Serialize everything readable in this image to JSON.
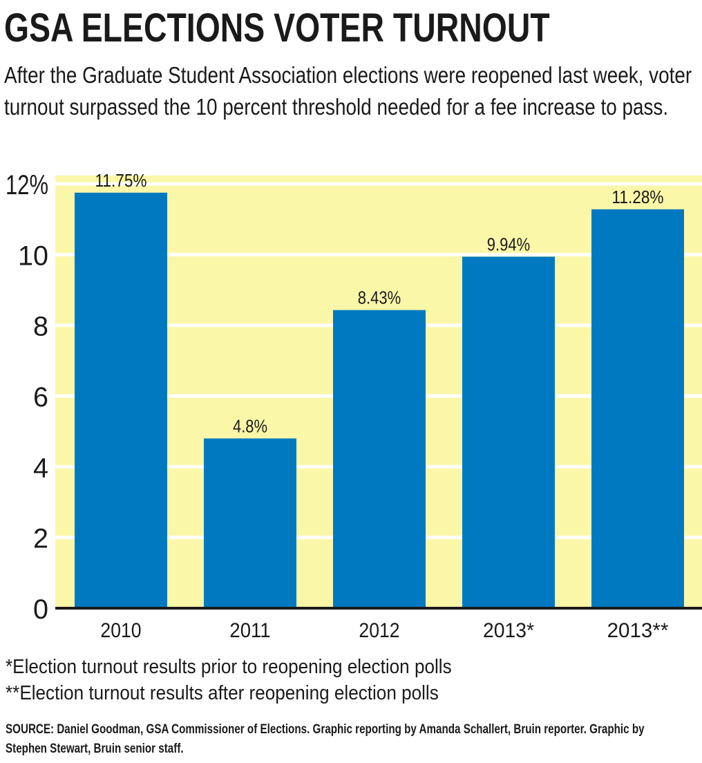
{
  "header": {
    "title": "GSA ELECTIONS VOTER TURNOUT",
    "subtitle": "After the Graduate Student Association elections were reopened last week, voter turnout surpassed the 10 percent threshold needed for a fee increase to pass."
  },
  "footnotes": {
    "note_1": "*Election turnout results prior to reopening election polls",
    "note_2": "**Election turnout results after reopening election polls"
  },
  "source": "SOURCE: Daniel Goodman, GSA Commissioner of Elections. Graphic reporting by Amanda Schallert, Bruin reporter. Graphic by Stephen Stewart, Bruin senior staff.",
  "colors": {
    "bar": "#0079c1",
    "plot_background": "#fbf7a8",
    "gridline": "#ffffff",
    "text": "#1a1a1a"
  },
  "chart_data": {
    "type": "bar",
    "categories": [
      "2010",
      "2011",
      "2012",
      "2013*",
      "2013**"
    ],
    "values": [
      11.75,
      4.8,
      8.43,
      9.94,
      11.28
    ],
    "data_labels": [
      "11.75%",
      "4.8%",
      "8.43%",
      "9.94%",
      "11.28%"
    ],
    "yticks": [
      0,
      2,
      4,
      6,
      8,
      10,
      12
    ],
    "ytick_labels": [
      "0",
      "2",
      "4",
      "6",
      "8",
      "10",
      "12%"
    ],
    "ylim": [
      0,
      12
    ],
    "xlabel": "",
    "ylabel": "",
    "grid": true,
    "legend": "none"
  }
}
